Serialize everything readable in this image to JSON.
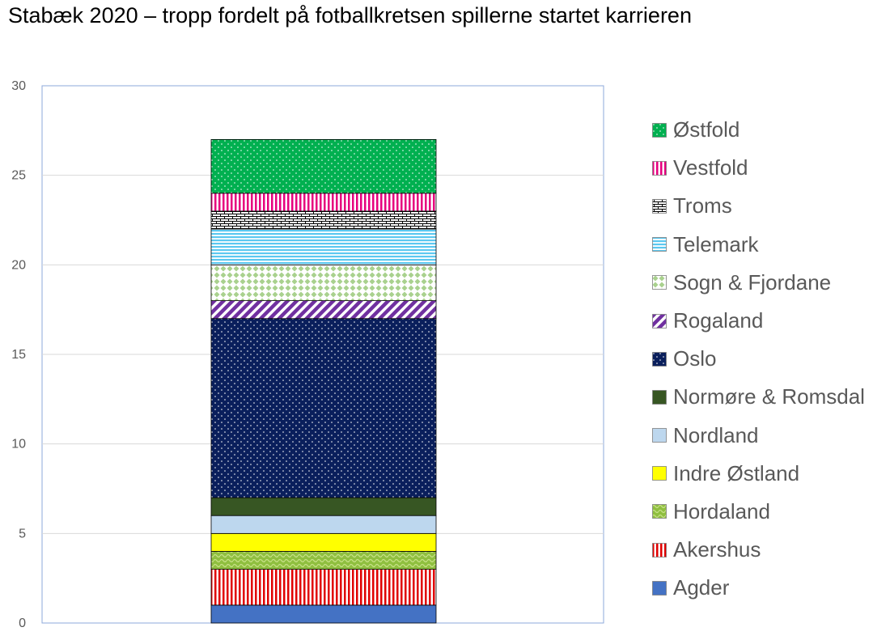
{
  "chart_data": {
    "type": "bar",
    "stacked": true,
    "title": "Stabæk 2020 – tropp fordelt på fotballkretsen spillerne startet karrieren",
    "xlabel": "",
    "ylabel": "",
    "ylim": [
      0,
      30
    ],
    "yticks": [
      "0",
      "5",
      "10",
      "15",
      "20",
      "25",
      "30"
    ],
    "grid": true,
    "legend_position": "right",
    "series": [
      {
        "name": "Agder",
        "values": [
          1
        ],
        "color": "#4472c4",
        "pattern": "solid"
      },
      {
        "name": "Akershus",
        "values": [
          2
        ],
        "color": "#e00000",
        "pattern": "vertical-stripes"
      },
      {
        "name": "Hordaland",
        "values": [
          1
        ],
        "color": "#70ad47",
        "pattern": "wave"
      },
      {
        "name": "Indre Østland",
        "values": [
          1
        ],
        "color": "#ffff00",
        "pattern": "solid"
      },
      {
        "name": "Nordland",
        "values": [
          1
        ],
        "color": "#bdd7ee",
        "pattern": "solid"
      },
      {
        "name": "Normøre & Romsdal",
        "values": [
          1
        ],
        "color": "#375623",
        "pattern": "solid"
      },
      {
        "name": "Oslo",
        "values": [
          10
        ],
        "color": "#0a1f5c",
        "pattern": "dots"
      },
      {
        "name": "Rogaland",
        "values": [
          1
        ],
        "color": "#7030a0",
        "pattern": "diagonal-stripes"
      },
      {
        "name": "Sogn & Fjordane",
        "values": [
          2
        ],
        "color": "#a9d18e",
        "pattern": "diamonds"
      },
      {
        "name": "Telemark",
        "values": [
          2
        ],
        "color": "#5bc8f0",
        "pattern": "horizontal-stripes"
      },
      {
        "name": "Troms",
        "values": [
          1
        ],
        "color": "#000000",
        "pattern": "bricks"
      },
      {
        "name": "Vestfold",
        "values": [
          1
        ],
        "color": "#e6007e",
        "pattern": "vertical-stripes"
      },
      {
        "name": "Østfold",
        "values": [
          3
        ],
        "color": "#00b050",
        "pattern": "dots"
      }
    ]
  }
}
